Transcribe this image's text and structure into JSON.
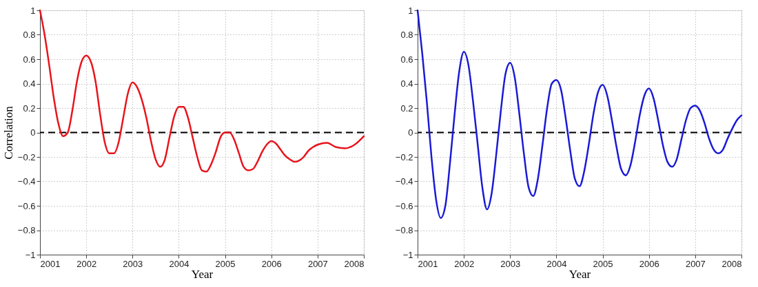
{
  "chart_data": [
    {
      "type": "line",
      "xlabel": "Year",
      "ylabel": "Correlation",
      "xlim": [
        2001,
        2008
      ],
      "xticks": [
        2001,
        2002,
        2003,
        2004,
        2005,
        2006,
        2007,
        2008
      ],
      "ylim": [
        -1,
        1
      ],
      "yticks": [
        -1,
        -0.8,
        -0.6,
        -0.4,
        -0.2,
        0,
        0.2,
        0.4,
        0.6,
        0.8,
        1
      ],
      "grid": true,
      "line_style": "solid",
      "marker": "none",
      "ref_lines": [
        {
          "axis": "y",
          "value": 0,
          "label": null,
          "color": "#000000",
          "line_style": "dashed"
        }
      ],
      "x": [
        2001.0,
        2001.1,
        2001.2,
        2001.3,
        2001.4,
        2001.5,
        2001.6,
        2001.7,
        2001.8,
        2001.9,
        2002.0,
        2002.1,
        2002.2,
        2002.3,
        2002.4,
        2002.5,
        2002.6,
        2002.7,
        2002.8,
        2002.9,
        2003.0,
        2003.1,
        2003.2,
        2003.3,
        2003.4,
        2003.5,
        2003.6,
        2003.7,
        2003.8,
        2003.9,
        2004.0,
        2004.1,
        2004.2,
        2004.3,
        2004.4,
        2004.5,
        2004.6,
        2004.7,
        2004.8,
        2004.9,
        2005.0,
        2005.1,
        2005.2,
        2005.3,
        2005.4,
        2005.5,
        2005.6,
        2005.7,
        2005.8,
        2005.9,
        2006.0,
        2006.1,
        2006.2,
        2006.3,
        2006.4,
        2006.5,
        2006.6,
        2006.7,
        2006.8,
        2006.9,
        2007.0,
        2007.2,
        2007.4,
        2007.6,
        2007.8,
        2008.0
      ],
      "series": [
        {
          "color": "#e8141c",
          "values": [
            1.0,
            0.8,
            0.55,
            0.28,
            0.07,
            -0.03,
            0.0,
            0.18,
            0.42,
            0.58,
            0.63,
            0.58,
            0.42,
            0.15,
            -0.08,
            -0.17,
            -0.17,
            -0.08,
            0.12,
            0.32,
            0.41,
            0.37,
            0.27,
            0.12,
            -0.07,
            -0.22,
            -0.28,
            -0.22,
            -0.04,
            0.13,
            0.21,
            0.21,
            0.12,
            -0.04,
            -0.2,
            -0.31,
            -0.32,
            -0.26,
            -0.16,
            -0.04,
            0.0,
            0.0,
            -0.06,
            -0.17,
            -0.28,
            -0.31,
            -0.3,
            -0.24,
            -0.16,
            -0.1,
            -0.07,
            -0.09,
            -0.14,
            -0.19,
            -0.22,
            -0.24,
            -0.23,
            -0.2,
            -0.15,
            -0.12,
            -0.1,
            -0.085,
            -0.12,
            -0.13,
            -0.1,
            -0.03
          ]
        }
      ]
    },
    {
      "type": "line",
      "xlabel": "Year",
      "xlim": [
        2001,
        2008
      ],
      "xticks": [
        2001,
        2002,
        2003,
        2004,
        2005,
        2006,
        2007,
        2008
      ],
      "ylim": [
        -1,
        1
      ],
      "yticks": [
        -1,
        -0.8,
        -0.6,
        -0.4,
        -0.2,
        0,
        0.2,
        0.4,
        0.6,
        0.8,
        1
      ],
      "grid": true,
      "line_style": "solid",
      "marker": "none",
      "ref_lines": [
        {
          "axis": "y",
          "value": 0,
          "label": null,
          "color": "#000000",
          "line_style": "dashed"
        }
      ],
      "x": [
        2001.0,
        2001.1,
        2001.2,
        2001.3,
        2001.4,
        2001.5,
        2001.6,
        2001.7,
        2001.8,
        2001.9,
        2002.0,
        2002.1,
        2002.2,
        2002.3,
        2002.4,
        2002.5,
        2002.6,
        2002.7,
        2002.8,
        2002.9,
        2003.0,
        2003.1,
        2003.2,
        2003.3,
        2003.4,
        2003.5,
        2003.6,
        2003.7,
        2003.8,
        2003.9,
        2004.0,
        2004.1,
        2004.2,
        2004.3,
        2004.4,
        2004.5,
        2004.6,
        2004.7,
        2004.8,
        2004.9,
        2005.0,
        2005.1,
        2005.2,
        2005.3,
        2005.4,
        2005.5,
        2005.6,
        2005.7,
        2005.8,
        2005.9,
        2006.0,
        2006.1,
        2006.2,
        2006.3,
        2006.4,
        2006.5,
        2006.6,
        2006.7,
        2006.8,
        2006.9,
        2007.0,
        2007.1,
        2007.2,
        2007.3,
        2007.4,
        2007.5,
        2007.6,
        2007.7,
        2007.8,
        2007.9,
        2008.0
      ],
      "series": [
        {
          "color": "#1a1ad6",
          "values": [
            1.0,
            0.65,
            0.25,
            -0.2,
            -0.55,
            -0.7,
            -0.6,
            -0.25,
            0.15,
            0.5,
            0.66,
            0.55,
            0.25,
            -0.1,
            -0.45,
            -0.63,
            -0.5,
            -0.18,
            0.18,
            0.48,
            0.57,
            0.45,
            0.15,
            -0.18,
            -0.45,
            -0.52,
            -0.38,
            -0.1,
            0.2,
            0.4,
            0.43,
            0.35,
            0.12,
            -0.15,
            -0.38,
            -0.44,
            -0.32,
            -0.1,
            0.15,
            0.33,
            0.39,
            0.3,
            0.1,
            -0.12,
            -0.3,
            -0.35,
            -0.27,
            -0.08,
            0.14,
            0.3,
            0.36,
            0.28,
            0.1,
            -0.1,
            -0.24,
            -0.28,
            -0.22,
            -0.06,
            0.1,
            0.2,
            0.22,
            0.18,
            0.08,
            -0.05,
            -0.14,
            -0.17,
            -0.14,
            -0.05,
            0.03,
            0.1,
            0.14
          ]
        }
      ]
    }
  ]
}
